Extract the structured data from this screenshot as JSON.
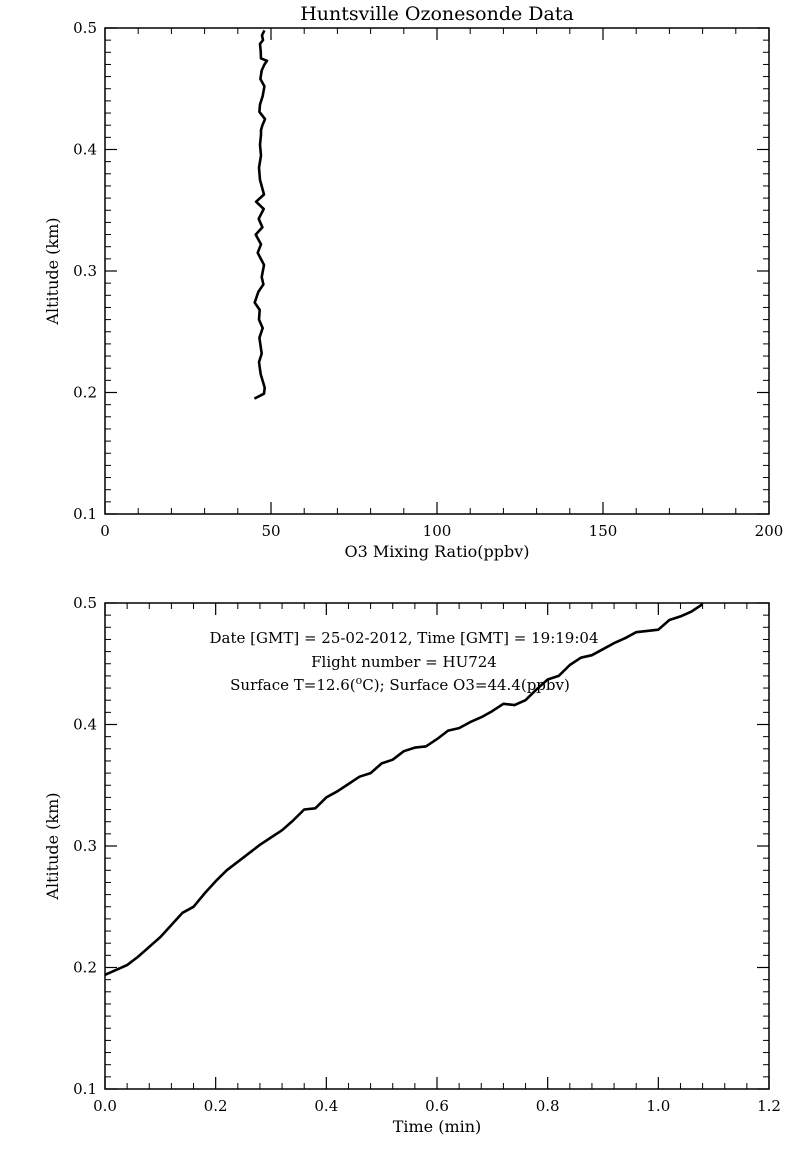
{
  "chart_data": [
    {
      "type": "line",
      "title": "Huntsville Ozonesonde Data",
      "xlabel": "O3 Mixing Ratio(ppbv)",
      "ylabel": "Altitude (km)",
      "xlim": [
        0,
        200
      ],
      "ylim": [
        0.1,
        0.5
      ],
      "x_ticks": [
        "0",
        "50",
        "100",
        "150",
        "200"
      ],
      "y_ticks": [
        "0.1",
        "0.2",
        "0.3",
        "0.4",
        "0.5"
      ],
      "series": [
        {
          "x": [
            45.0,
            46.5,
            47.9,
            48.1,
            46.9,
            46.4,
            47.2,
            46.5,
            47.5,
            46.4,
            46.6,
            45.1,
            46.2,
            47.7,
            47.2,
            47.9,
            46.0,
            47.0,
            45.4,
            47.4,
            46.3,
            47.8,
            45.5,
            47.9,
            46.7,
            46.4,
            47.0,
            46.7,
            47.0,
            47.0,
            47.4,
            48.2,
            46.5,
            46.7,
            47.5,
            48.0,
            46.8,
            47.2,
            48.0,
            48.8,
            47.0,
            46.9,
            46.7,
            47.6,
            47.3,
            48.0
          ],
          "y": [
            0.195,
            0.197,
            0.199,
            0.204,
            0.215,
            0.225,
            0.232,
            0.245,
            0.253,
            0.26,
            0.268,
            0.274,
            0.283,
            0.289,
            0.295,
            0.305,
            0.315,
            0.322,
            0.33,
            0.336,
            0.343,
            0.351,
            0.357,
            0.363,
            0.375,
            0.385,
            0.395,
            0.404,
            0.412,
            0.416,
            0.42,
            0.425,
            0.431,
            0.437,
            0.444,
            0.452,
            0.458,
            0.465,
            0.47,
            0.473,
            0.475,
            0.481,
            0.487,
            0.49,
            0.494,
            0.498
          ]
        }
      ]
    },
    {
      "type": "line",
      "title": "",
      "xlabel": "Time (min)",
      "ylabel": "Altitude (km)",
      "xlim": [
        0.0,
        1.2
      ],
      "ylim": [
        0.1,
        0.5
      ],
      "x_ticks": [
        "0.0",
        "0.2",
        "0.4",
        "0.6",
        "0.8",
        "1.0",
        "1.2"
      ],
      "y_ticks": [
        "0.1",
        "0.2",
        "0.3",
        "0.4",
        "0.5"
      ],
      "annotations": [
        "Date [GMT] = 25-02-2012,  Time [GMT] = 19:19:04",
        "Flight number = HU724"
      ],
      "surface_note": {
        "prefix": "Surface T=12.6(",
        "sup": "o",
        "suffix": "C); Surface O3=44.4(ppbv)"
      },
      "series": [
        {
          "x": [
            0.0,
            0.02,
            0.04,
            0.06,
            0.08,
            0.1,
            0.12,
            0.14,
            0.16,
            0.18,
            0.2,
            0.22,
            0.24,
            0.26,
            0.28,
            0.3,
            0.32,
            0.34,
            0.36,
            0.38,
            0.4,
            0.42,
            0.44,
            0.46,
            0.48,
            0.5,
            0.52,
            0.54,
            0.56,
            0.58,
            0.6,
            0.62,
            0.64,
            0.66,
            0.68,
            0.7,
            0.72,
            0.74,
            0.76,
            0.78,
            0.8,
            0.82,
            0.84,
            0.86,
            0.88,
            0.9,
            0.92,
            0.94,
            0.96,
            0.98,
            1.0,
            1.02,
            1.04,
            1.06,
            1.08
          ],
          "y": [
            0.194,
            0.198,
            0.202,
            0.209,
            0.217,
            0.225,
            0.235,
            0.245,
            0.25,
            0.261,
            0.271,
            0.28,
            0.287,
            0.294,
            0.301,
            0.307,
            0.313,
            0.321,
            0.33,
            0.331,
            0.34,
            0.345,
            0.351,
            0.357,
            0.36,
            0.368,
            0.371,
            0.378,
            0.381,
            0.382,
            0.388,
            0.395,
            0.397,
            0.402,
            0.406,
            0.411,
            0.417,
            0.416,
            0.42,
            0.429,
            0.437,
            0.44,
            0.449,
            0.455,
            0.457,
            0.462,
            0.467,
            0.471,
            0.476,
            0.477,
            0.478,
            0.486,
            0.489,
            0.493,
            0.499
          ]
        }
      ]
    }
  ]
}
